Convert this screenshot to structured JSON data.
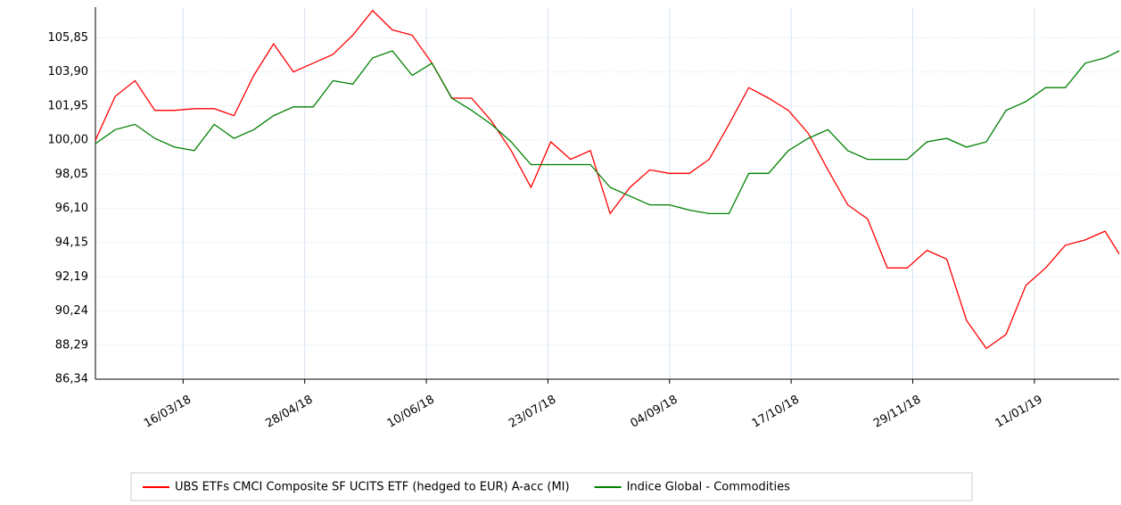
{
  "chart_data": {
    "type": "line",
    "x": [
      "13/02/18",
      "20/02/18",
      "27/02/18",
      "06/03/18",
      "13/03/18",
      "20/03/18",
      "27/03/18",
      "03/04/18",
      "10/04/18",
      "17/04/18",
      "24/04/18",
      "01/05/18",
      "08/05/18",
      "15/05/18",
      "22/05/18",
      "29/05/18",
      "05/06/18",
      "12/06/18",
      "19/06/18",
      "26/06/18",
      "03/07/18",
      "10/07/18",
      "17/07/18",
      "24/07/18",
      "31/07/18",
      "07/08/18",
      "14/08/18",
      "21/08/18",
      "28/08/18",
      "04/09/18",
      "11/09/18",
      "18/09/18",
      "25/09/18",
      "02/10/18",
      "09/10/18",
      "16/10/18",
      "23/10/18",
      "30/10/18",
      "06/11/18",
      "13/11/18",
      "20/11/18",
      "27/11/18",
      "04/12/18",
      "11/12/18",
      "18/12/18",
      "25/12/18",
      "01/01/19",
      "08/01/19",
      "15/01/19",
      "22/01/19",
      "29/01/19",
      "05/02/19",
      "10/02/19"
    ],
    "series": [
      {
        "name": "UBS ETFs CMCI Composite SF UCITS ETF (hedged to EUR) A-acc (MI)",
        "color": "#ff0000",
        "values": [
          100.0,
          102.5,
          103.4,
          101.7,
          101.7,
          101.8,
          101.8,
          101.4,
          103.7,
          105.5,
          103.9,
          104.4,
          104.9,
          106.0,
          107.4,
          106.3,
          106.0,
          104.4,
          102.4,
          102.4,
          101.1,
          99.4,
          97.3,
          99.9,
          98.9,
          99.4,
          95.8,
          97.3,
          98.3,
          98.1,
          98.1,
          98.9,
          100.9,
          103.0,
          102.4,
          101.7,
          100.4,
          98.3,
          96.3,
          95.5,
          92.7,
          92.7,
          93.7,
          93.2,
          89.7,
          88.1,
          88.9,
          91.7,
          92.7,
          94.0,
          94.3,
          94.8,
          93.5
        ]
      },
      {
        "name": "Indice Global - Commodities",
        "color": "#008000",
        "values": [
          99.8,
          100.6,
          100.9,
          100.1,
          99.6,
          99.4,
          100.9,
          100.1,
          100.6,
          101.4,
          101.9,
          101.9,
          103.4,
          103.2,
          104.7,
          105.1,
          103.7,
          104.4,
          102.4,
          101.7,
          100.9,
          99.9,
          98.6,
          98.6,
          98.6,
          98.6,
          97.3,
          96.8,
          96.3,
          96.3,
          96.0,
          95.8,
          95.8,
          98.1,
          98.1,
          99.4,
          100.1,
          100.6,
          99.4,
          98.9,
          98.9,
          98.9,
          99.9,
          100.1,
          99.6,
          99.9,
          101.7,
          102.2,
          103.0,
          103.0,
          104.4,
          104.7,
          105.1
        ]
      }
    ],
    "xlim": [
      "13/02/18",
      "10/02/19"
    ],
    "xticks": [
      "16/03/18",
      "28/04/18",
      "10/06/18",
      "23/07/18",
      "04/09/18",
      "17/10/18",
      "29/11/18",
      "11/01/19"
    ],
    "ylim": [
      86.34,
      107.6
    ],
    "yticks": [
      {
        "value": 86.34,
        "label": "86,34"
      },
      {
        "value": 88.29,
        "label": "88,29"
      },
      {
        "value": 90.24,
        "label": "90,24"
      },
      {
        "value": 92.19,
        "label": "92,19"
      },
      {
        "value": 94.15,
        "label": "94,15"
      },
      {
        "value": 96.1,
        "label": "96,10"
      },
      {
        "value": 98.05,
        "label": "98,05"
      },
      {
        "value": 100.0,
        "label": "100,00"
      },
      {
        "value": 101.95,
        "label": "101,95"
      },
      {
        "value": 103.9,
        "label": "103,90"
      },
      {
        "value": 105.85,
        "label": "105,85"
      }
    ],
    "grid": true
  }
}
